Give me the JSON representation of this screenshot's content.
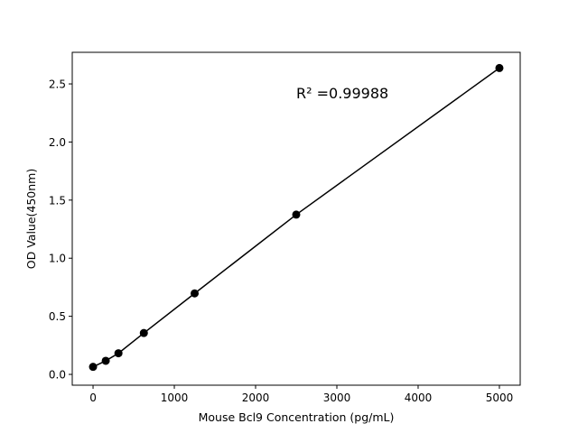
{
  "chart_data": {
    "type": "line",
    "title": "",
    "xlabel": "Mouse Bcl9 Concentration (pg/mL)",
    "ylabel": "OD Value(450nm)",
    "xlim": [
      -256,
      5256
    ],
    "ylim": [
      -0.093,
      2.772
    ],
    "xticks": [
      0,
      1000,
      2000,
      3000,
      4000,
      5000
    ],
    "xtick_labels": [
      "0",
      "1000",
      "2000",
      "3000",
      "4000",
      "5000"
    ],
    "yticks": [
      0,
      0.5,
      1.0,
      1.5,
      2.0,
      2.5
    ],
    "ytick_labels": [
      "0.0",
      "0.5",
      "1.0",
      "1.5",
      "2.0",
      "2.5"
    ],
    "grid": false,
    "series": [
      {
        "x": [
          0,
          156.25,
          312.5,
          625,
          1250,
          2500,
          5000
        ],
        "y": [
          0.065,
          0.117,
          0.182,
          0.356,
          0.697,
          1.375,
          2.637
        ],
        "color": "#000000",
        "marker": "circle"
      }
    ],
    "annotation": "R² =0.99988"
  }
}
